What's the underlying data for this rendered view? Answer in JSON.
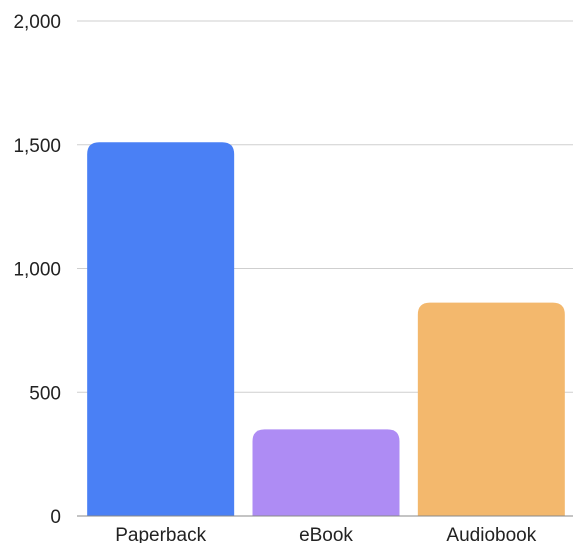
{
  "chart_data": {
    "type": "bar",
    "title": "",
    "xlabel": "",
    "ylabel": "",
    "categories": [
      "Paperback",
      "eBook",
      "Audiobook"
    ],
    "values": [
      1510,
      350,
      862
    ],
    "colors": [
      "#4a80f5",
      "#ae8cf4",
      "#f3b86d"
    ],
    "ylim": [
      0,
      2000
    ],
    "yticks": [
      0,
      500,
      1000,
      1500,
      2000
    ],
    "ytick_labels": [
      "0",
      "500",
      "1,000",
      "1,500",
      "2,000"
    ],
    "grid": true,
    "legend": "none"
  }
}
